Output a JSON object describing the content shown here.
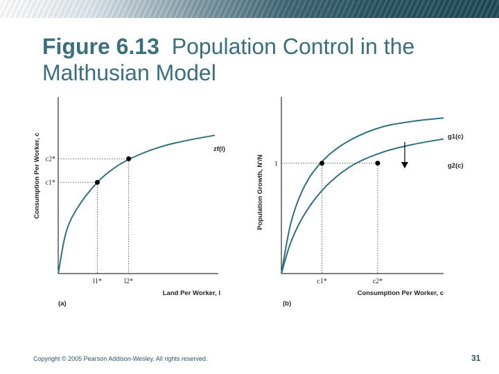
{
  "header": {
    "title_bold": "Figure 6.13",
    "title_rest": "Population Control in the Malthusian Model"
  },
  "footer": {
    "copyright": "Copyright © 2005 Pearson Addison-Wesley. All rights reserved.",
    "page": "31"
  },
  "colors": {
    "curve": "#2e6f82",
    "axis": "#000000",
    "title": "#3a6f80"
  },
  "chart_data": [
    {
      "type": "line",
      "panel": "(a)",
      "xlabel": "Land Per Worker, l",
      "ylabel": "Consumption Per Worker, c",
      "series": [
        {
          "name": "zf(l)",
          "x": [
            0,
            0.1,
            0.25,
            0.5,
            0.75,
            1.0,
            1.3,
            1.6,
            2.0
          ],
          "y": [
            0,
            0.28,
            0.45,
            0.62,
            0.73,
            0.8,
            0.86,
            0.9,
            0.94
          ]
        }
      ],
      "points": [
        {
          "x_label": "l1*",
          "y_label": "c1*",
          "x": 0.5,
          "y": 0.62
        },
        {
          "x_label": "l2*",
          "y_label": "c2*",
          "x": 0.9,
          "y": 0.78
        }
      ],
      "xlim": [
        0,
        2.0
      ],
      "ylim": [
        0,
        1.2
      ]
    },
    {
      "type": "line",
      "panel": "(b)",
      "xlabel": "Consumption Per Worker, c",
      "ylabel": "Population Growth, N'/N",
      "series": [
        {
          "name": "g1(c)",
          "x": [
            0,
            0.1,
            0.25,
            0.45,
            0.7,
            1.0,
            1.3,
            1.6
          ],
          "y": [
            0,
            0.48,
            0.83,
            1.06,
            1.22,
            1.33,
            1.38,
            1.41
          ]
        },
        {
          "name": "g2(c)",
          "x": [
            0,
            0.1,
            0.25,
            0.45,
            0.7,
            1.0,
            1.3,
            1.6
          ],
          "y": [
            0,
            0.3,
            0.57,
            0.8,
            0.98,
            1.1,
            1.17,
            1.22
          ]
        }
      ],
      "reference_y": {
        "label": "1",
        "value": 1
      },
      "points": [
        {
          "x_label": "c1*",
          "x": 0.4,
          "y": 1
        },
        {
          "x_label": "c2*",
          "x": 0.95,
          "y": 1
        }
      ],
      "annotation": "arrow from g1(c) to g2(c)",
      "xlim": [
        0,
        1.6
      ],
      "ylim": [
        0,
        1.6
      ]
    }
  ]
}
